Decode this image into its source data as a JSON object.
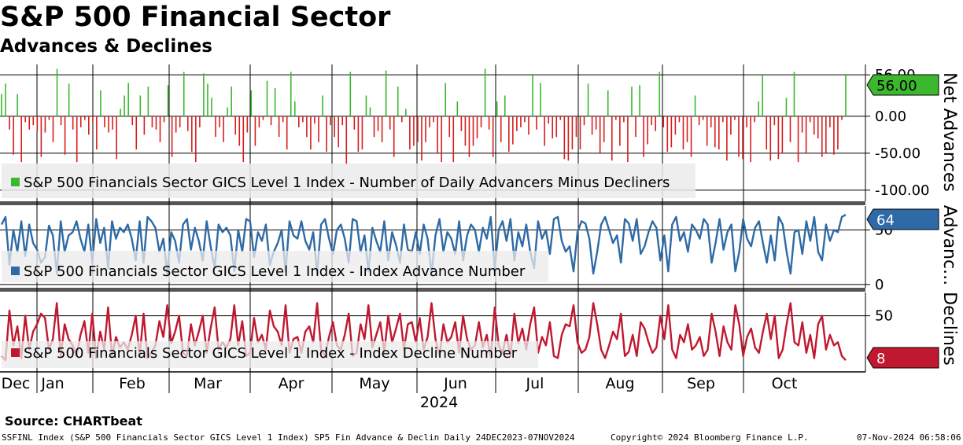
{
  "header": {
    "title": "S&P 500 Financial Sector",
    "subtitle": "Advances & Declines"
  },
  "source": "Source: CHARTbeat",
  "footer": {
    "left": "SSFINL Index (S&P 500 Financials Sector GICS Level 1 Index) SP5 Fin Advance & Declin  Daily 24DEC2023-07NOV2024",
    "center": "Copyright© 2024 Bloomberg Finance L.P.",
    "right": "07-Nov-2024 06:58:06"
  },
  "colors": {
    "advance_green": "#3cb82e",
    "decline_red": "#d61e1e",
    "advance_blue": "#2e6aa6",
    "decline_crimson": "#c0182f",
    "legend_bg": "#ebebeb"
  },
  "x_axis": {
    "months": [
      "Dec",
      "Jan",
      "Feb",
      "Mar",
      "Apr",
      "May",
      "Jun",
      "Jul",
      "Aug",
      "Sep",
      "Oct"
    ],
    "year": "2024",
    "gridlines": true
  },
  "chart_data": [
    {
      "type": "bar",
      "panel": "net",
      "legend": "S&P 500 Financials Sector GICS Level 1 Index - Number of Daily Advancers Minus Decliners",
      "axis_title": "Net Advances",
      "y_ticks": [
        "56.00",
        "0.00",
        "-50.00",
        "-100.00"
      ],
      "ylim": [
        -115,
        70
      ],
      "last_value_label": "56.00",
      "values": [
        30,
        44,
        -18,
        -52,
        30,
        -62,
        -8,
        -18,
        -12,
        -20,
        -55,
        -22,
        -5,
        -35,
        64,
        -12,
        -52,
        44,
        -18,
        -62,
        -15,
        -5,
        -25,
        -8,
        -45,
        35,
        -15,
        -22,
        -18,
        -58,
        10,
        28,
        45,
        -12,
        -45,
        28,
        -25,
        40,
        -15,
        -18,
        -35,
        -8,
        42,
        -55,
        -22,
        -15,
        60,
        -20,
        -48,
        -62,
        -15,
        58,
        44,
        25,
        -28,
        -15,
        -35,
        12,
        40,
        -25,
        -40,
        -62,
        -22,
        35,
        -40,
        -15,
        -5,
        48,
        -12,
        38,
        -28,
        -8,
        -45,
        60,
        20,
        -15,
        -8,
        -28,
        -45,
        -10,
        -35,
        28,
        -48,
        -12,
        -28,
        -42,
        -12,
        -65,
        60,
        -18,
        -48,
        -45,
        28,
        12,
        -28,
        -20,
        -35,
        62,
        -18,
        -55,
        40,
        -8,
        10,
        -45,
        -40,
        -35,
        -60,
        -35,
        -15,
        -8,
        -50,
        -62,
        45,
        -28,
        -62,
        20,
        -20,
        -40,
        -55,
        -40,
        -30,
        -15,
        64,
        -18,
        -55,
        20,
        -35,
        28,
        -48,
        -38,
        -20,
        -15,
        -8,
        -25,
        55,
        -18,
        45,
        -40,
        -10,
        -30,
        -28,
        -5,
        -58,
        -60,
        -45,
        -28,
        -45,
        -12,
        44,
        -25,
        -18,
        -50,
        -35,
        35,
        -60,
        -5,
        -40,
        -8,
        -62,
        40,
        -28,
        42,
        -55,
        -38,
        -12,
        -20,
        60,
        -15,
        -48,
        -42,
        -25,
        -8,
        -45,
        -35,
        -55,
        28,
        -12,
        -5,
        -40,
        -15,
        -42,
        -45,
        -8,
        -60,
        -25,
        -5,
        -55,
        -58,
        -15,
        -62,
        -8,
        20,
        55,
        -45,
        -60,
        -12,
        -58,
        -50,
        25,
        -35,
        60,
        -62,
        -22,
        -50,
        -8,
        -25,
        -30,
        -55,
        -50,
        -15,
        -52,
        -45,
        -5,
        56
      ],
      "range_note": "net advances approx. -65 to 66"
    },
    {
      "type": "line",
      "panel": "advances",
      "legend": "S&P 500 Financials Sector GICS Level 1 Index - Index Advance Number",
      "axis_title": "Advanc...",
      "y_ticks": [
        "50",
        "0"
      ],
      "ylim": [
        -3,
        72
      ],
      "last_value_label": "64",
      "values": [
        55,
        62,
        18,
        50,
        30,
        58,
        26,
        55,
        38,
        32,
        20,
        25,
        54,
        45,
        10,
        58,
        30,
        45,
        48,
        58,
        42,
        30,
        55,
        20,
        60,
        38,
        52,
        15,
        58,
        42,
        52,
        48,
        55,
        42,
        22,
        58,
        20,
        62,
        58,
        52,
        30,
        42,
        10,
        48,
        40,
        20,
        55,
        60,
        32,
        52,
        40,
        22,
        58,
        35,
        15,
        55,
        48,
        52,
        45,
        12,
        50,
        30,
        60,
        58,
        25,
        48,
        40,
        55,
        18,
        30,
        38,
        50,
        12,
        58,
        45,
        42,
        58,
        40,
        32,
        48,
        10,
        55,
        60,
        42,
        28,
        50,
        55,
        42,
        20,
        60,
        58,
        30,
        45,
        12,
        52,
        40,
        30,
        58,
        22,
        48,
        36,
        20,
        55,
        32,
        30,
        48,
        28,
        55,
        42,
        10,
        45,
        60,
        30,
        48,
        42,
        28,
        58,
        22,
        45,
        55,
        50,
        30,
        52,
        42,
        62,
        15,
        50,
        58,
        40,
        60,
        22,
        48,
        35,
        55,
        30,
        15,
        58,
        42,
        50,
        28,
        60,
        62,
        40,
        30,
        35,
        12,
        48,
        58,
        56,
        42,
        10,
        30,
        55,
        62,
        50,
        38,
        45,
        20,
        60,
        56,
        40,
        60,
        28,
        35,
        48,
        58,
        52,
        22,
        45,
        12,
        55,
        62,
        40,
        48,
        30,
        55,
        50,
        42,
        60,
        55,
        20,
        38,
        60,
        32,
        48,
        55,
        12,
        30,
        60,
        42,
        35,
        52,
        58,
        38,
        20,
        45,
        22,
        62,
        55,
        30,
        10,
        48,
        50,
        28,
        58,
        40,
        62,
        30,
        22,
        55,
        40,
        50,
        48,
        62,
        64
      ],
      "range_note": "values approx. 3 to 68"
    },
    {
      "type": "line",
      "panel": "declines",
      "legend": "S&P 500 Financials Sector GICS Level 1 Index - Index Decline Number",
      "axis_title": "Declines",
      "y_ticks": [
        "50"
      ],
      "ylim": [
        -3,
        72
      ],
      "last_value_label": "8",
      "values": [
        12,
        8,
        55,
        22,
        40,
        10,
        50,
        18,
        35,
        42,
        52,
        48,
        18,
        28,
        62,
        12,
        42,
        28,
        22,
        12,
        32,
        45,
        15,
        52,
        10,
        35,
        18,
        58,
        12,
        30,
        20,
        25,
        18,
        32,
        50,
        12,
        52,
        10,
        15,
        22,
        45,
        30,
        60,
        24,
        35,
        50,
        15,
        12,
        42,
        22,
        35,
        50,
        15,
        38,
        58,
        18,
        25,
        20,
        28,
        60,
        22,
        45,
        12,
        15,
        48,
        25,
        32,
        18,
        55,
        40,
        35,
        22,
        60,
        15,
        28,
        30,
        15,
        35,
        40,
        25,
        62,
        18,
        12,
        30,
        44,
        22,
        18,
        32,
        52,
        12,
        15,
        42,
        28,
        60,
        20,
        32,
        44,
        15,
        50,
        25,
        38,
        52,
        18,
        42,
        44,
        25,
        48,
        18,
        30,
        62,
        28,
        12,
        42,
        25,
        30,
        44,
        15,
        50,
        28,
        18,
        22,
        44,
        20,
        32,
        10,
        58,
        22,
        15,
        32,
        12,
        52,
        24,
        38,
        18,
        42,
        58,
        15,
        30,
        22,
        44,
        12,
        10,
        32,
        42,
        40,
        60,
        25,
        15,
        18,
        30,
        62,
        42,
        18,
        10,
        22,
        35,
        28,
        52,
        12,
        16,
        32,
        12,
        44,
        38,
        25,
        15,
        20,
        50,
        28,
        60,
        18,
        10,
        32,
        25,
        42,
        18,
        22,
        30,
        12,
        18,
        52,
        35,
        12,
        40,
        25,
        18,
        60,
        42,
        12,
        30,
        38,
        20,
        15,
        35,
        52,
        28,
        50,
        10,
        18,
        42,
        62,
        25,
        22,
        44,
        15,
        32,
        10,
        42,
        50,
        18,
        32,
        22,
        25,
        12,
        8
      ],
      "range_note": "values approx. 3 to 68"
    }
  ]
}
